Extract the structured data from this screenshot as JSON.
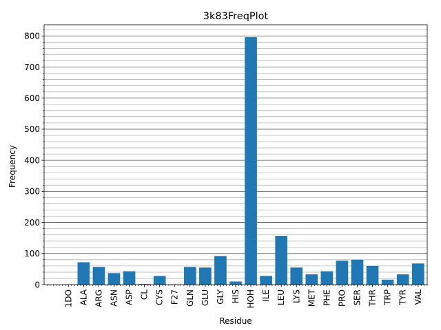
{
  "chart_data": {
    "type": "bar",
    "title": "3k83FreqPlot",
    "xlabel": "Residue",
    "ylabel": "Frequency",
    "categories": [
      "1DO",
      "ALA",
      "ARG",
      "ASN",
      "ASP",
      "CL",
      "CYS",
      "F27",
      "GLN",
      "GLU",
      "GLY",
      "HIS",
      "HOH",
      "ILE",
      "LEU",
      "LYS",
      "MET",
      "PHE",
      "PRO",
      "SER",
      "THR",
      "TRP",
      "TYR",
      "VAL"
    ],
    "values": [
      1,
      72,
      57,
      37,
      43,
      2,
      28,
      1,
      57,
      55,
      92,
      10,
      796,
      28,
      157,
      55,
      33,
      43,
      77,
      80,
      60,
      16,
      33,
      68
    ],
    "ylim": [
      0,
      836
    ],
    "yticks": [
      0,
      100,
      200,
      300,
      400,
      500,
      600,
      700,
      800
    ],
    "grid": "major and minor horizontal",
    "bar_color": "#1f77b4",
    "major_grid_color": "#555555",
    "minor_grid_color": "#b0b0b0"
  }
}
